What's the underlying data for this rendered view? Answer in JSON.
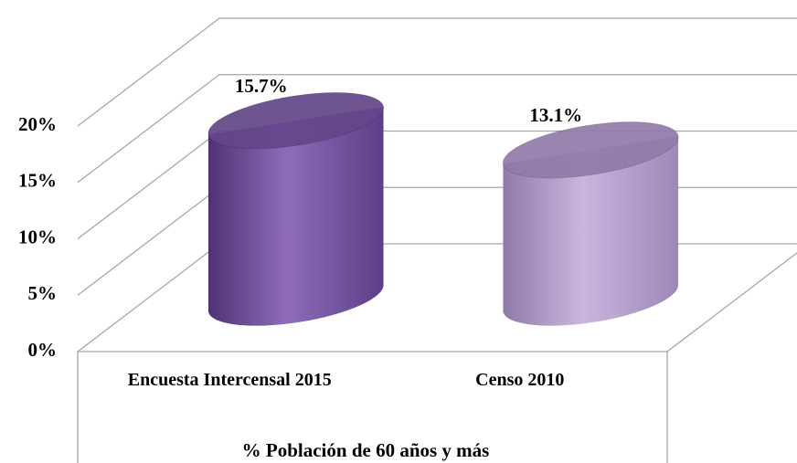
{
  "chart_data": {
    "type": "cylinder",
    "x_label": "% Población de 60 años y más",
    "categories": [
      "Encuesta Intercensal 2015",
      "Censo 2010"
    ],
    "values": [
      15.7,
      13.1
    ],
    "value_labels": [
      "15.7%",
      "13.1%"
    ],
    "colors": [
      "#7a5aa6",
      "#b8a2d2"
    ],
    "ylim": [
      0,
      20
    ],
    "yticks": [
      {
        "value": 0,
        "label": "0%"
      },
      {
        "value": 5,
        "label": "5%"
      },
      {
        "value": 10,
        "label": "10%"
      },
      {
        "value": 15,
        "label": "15%"
      },
      {
        "value": 20,
        "label": "20%"
      }
    ],
    "grid": true
  }
}
